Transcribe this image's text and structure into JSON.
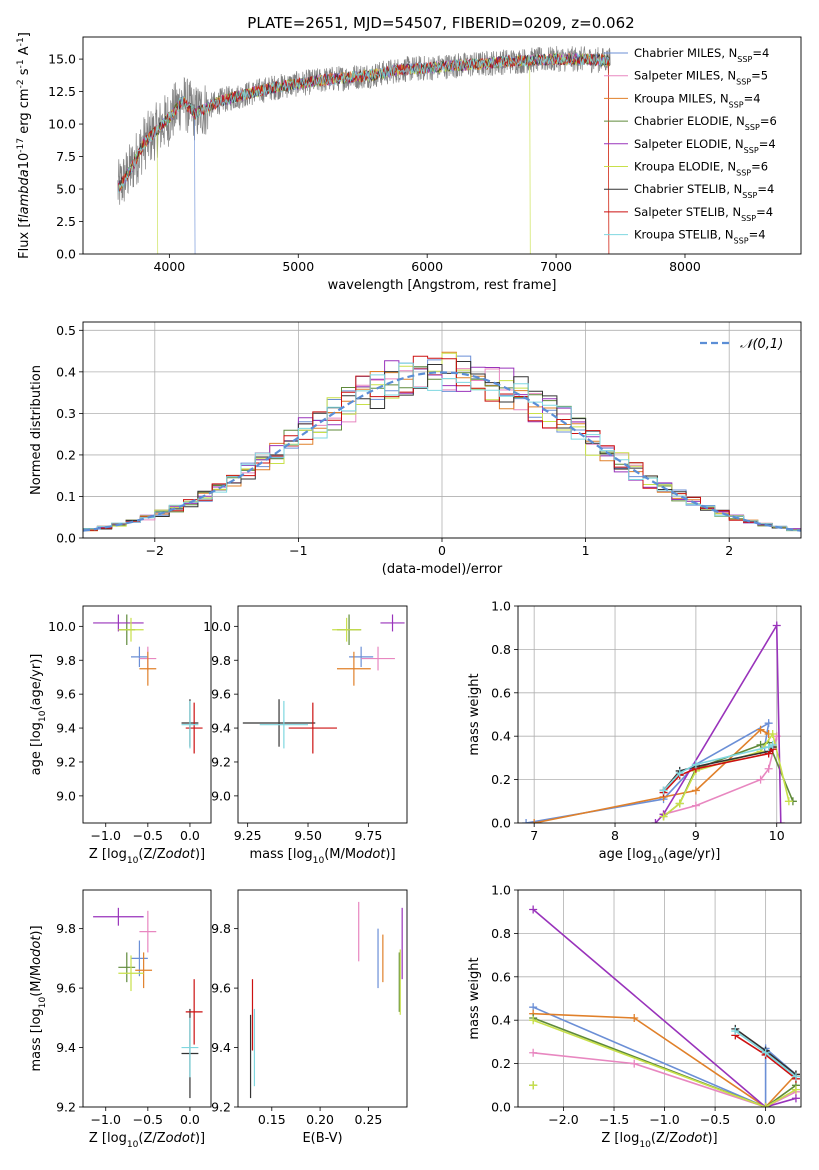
{
  "figure": {
    "title": "PLATE=2651, MJD=54507, FIBERID=0209, z=0.062"
  },
  "models": [
    {
      "name": "Chabrier MILES, N$_{SSP}$=4",
      "base": "Chabrier MILES, N",
      "nssp": "4",
      "color": "#6b8fd6"
    },
    {
      "name": "Salpeter MILES, N$_{SSP}$=5",
      "base": "Salpeter MILES, N",
      "nssp": "5",
      "color": "#e887c0"
    },
    {
      "name": "Kroupa MILES, N$_{SSP}$=4",
      "base": "Kroupa MILES, N",
      "nssp": "4",
      "color": "#e0802a"
    },
    {
      "name": "Chabrier ELODIE, N$_{SSP}$=6",
      "base": "Chabrier ELODIE, N",
      "nssp": "6",
      "color": "#5f8a3a"
    },
    {
      "name": "Salpeter ELODIE, N$_{SSP}$=4",
      "base": "Salpeter ELODIE, N",
      "nssp": "4",
      "color": "#9933bb"
    },
    {
      "name": "Kroupa ELODIE, N$_{SSP}$=6",
      "base": "Kroupa ELODIE, N",
      "nssp": "6",
      "color": "#c8e04a"
    },
    {
      "name": "Chabrier STELIB, N$_{SSP}$=4",
      "base": "Chabrier STELIB, N",
      "nssp": "4",
      "color": "#333333"
    },
    {
      "name": "Salpeter STELIB, N$_{SSP}$=4",
      "base": "Salpeter STELIB, N",
      "nssp": "4",
      "color": "#cc1111"
    },
    {
      "name": "Kroupa STELIB, N$_{SSP}$=4",
      "base": "Kroupa STELIB, N",
      "nssp": "4",
      "color": "#7fd7e0"
    }
  ],
  "chart_data": [
    {
      "type": "line",
      "id": "spectrum",
      "xlabel": "wavelength [Angstrom, rest frame]",
      "ylabel": "Flux [f$_\\lambda$10$^{-17}$ erg cm$^{-2}$ s$^{-1}$ A$^{-1}$]",
      "xlim": [
        3330,
        8900
      ],
      "ylim": [
        0,
        16.7
      ],
      "xticks": [
        4000,
        5000,
        6000,
        7000,
        8000
      ],
      "yticks": [
        0.0,
        2.5,
        5.0,
        7.5,
        10.0,
        12.5,
        15.0
      ],
      "data_color": "#808080",
      "data_envelope": {
        "x": [
          3600,
          3700,
          3800,
          3900,
          4000,
          4100,
          4200,
          4400,
          4600,
          4800,
          5000,
          5200,
          5400,
          5600,
          5800,
          6000,
          6200,
          6400,
          6600,
          6800,
          7000,
          7200,
          7400,
          7420
        ],
        "y": [
          5.0,
          6.5,
          8.5,
          9.5,
          10.5,
          11.8,
          10.8,
          11.8,
          12.3,
          12.8,
          13.1,
          13.4,
          13.6,
          13.8,
          14.2,
          14.3,
          14.5,
          14.6,
          14.8,
          14.9,
          15.0,
          15.0,
          14.9,
          14.9
        ]
      },
      "legend_loc": "upper right",
      "grid": false
    },
    {
      "type": "step",
      "id": "residuals",
      "xlabel": "(data-model)/error",
      "ylabel": "Normed distribution",
      "xlim": [
        -2.5,
        2.5
      ],
      "ylim": [
        0,
        0.52
      ],
      "xticks": [
        -2,
        -1,
        0,
        1,
        2
      ],
      "yticks": [
        0.0,
        0.1,
        0.2,
        0.3,
        0.4,
        0.5
      ],
      "gaussian_label": "$\\mathcal{N}(0,1)$",
      "gaussian_color": "#5b8ed6",
      "bin_width": 0.1,
      "grid": true
    },
    {
      "type": "errorbar",
      "id": "age-vs-Z",
      "xlabel": "Z [log$_{10}$(Z/Z$_\\odot$)]",
      "ylabel": "age  [log$_{10}$(age/yr)]",
      "xlim": [
        -1.27,
        0.25
      ],
      "ylim": [
        8.84,
        10.12
      ],
      "xticks": [
        -1.0,
        -0.5,
        0.0
      ],
      "yticks": [
        9.0,
        9.2,
        9.4,
        9.6,
        9.8,
        10.0
      ],
      "points": [
        {
          "model": 0,
          "x": -0.6,
          "xerr": 0.1,
          "y": 9.82,
          "yerr": 0.06
        },
        {
          "model": 1,
          "x": -0.5,
          "xerr": 0.1,
          "y": 9.81,
          "yerr": 0.07
        },
        {
          "model": 2,
          "x": -0.5,
          "xerr": 0.1,
          "y": 9.75,
          "yerr": 0.1
        },
        {
          "model": 3,
          "x": -0.75,
          "xerr": 0.1,
          "y": 9.98,
          "yerr": 0.09
        },
        {
          "model": 4,
          "x": -0.85,
          "xerr": 0.3,
          "y": 10.02,
          "yerr": 0.05
        },
        {
          "model": 5,
          "x": -0.7,
          "xerr": 0.15,
          "y": 9.98,
          "yerr": 0.07
        },
        {
          "model": 6,
          "x": 0.0,
          "xerr": 0.1,
          "y": 9.43,
          "yerr": 0.14
        },
        {
          "model": 7,
          "x": 0.05,
          "xerr": 0.1,
          "y": 9.4,
          "yerr": 0.15
        },
        {
          "model": 8,
          "x": 0.0,
          "xerr": 0.1,
          "y": 9.42,
          "yerr": 0.14
        }
      ]
    },
    {
      "type": "errorbar",
      "id": "age-vs-mass",
      "xlabel": "mass [log$_{10}$(M/M$_\\odot$)]",
      "ylabel": "",
      "xlim": [
        9.21,
        9.91
      ],
      "ylim": [
        8.84,
        10.12
      ],
      "xticks": [
        9.25,
        9.5,
        9.75
      ],
      "yticks": [
        9.0,
        9.2,
        9.4,
        9.6,
        9.8,
        10.0
      ],
      "points": [
        {
          "model": 0,
          "x": 9.72,
          "xerr": 0.05,
          "y": 9.82,
          "yerr": 0.06
        },
        {
          "model": 1,
          "x": 9.79,
          "xerr": 0.07,
          "y": 9.81,
          "yerr": 0.07
        },
        {
          "model": 2,
          "x": 9.69,
          "xerr": 0.07,
          "y": 9.75,
          "yerr": 0.1
        },
        {
          "model": 3,
          "x": 9.67,
          "xerr": 0.05,
          "y": 9.98,
          "yerr": 0.09
        },
        {
          "model": 4,
          "x": 9.85,
          "xerr": 0.05,
          "y": 10.02,
          "yerr": 0.05
        },
        {
          "model": 5,
          "x": 9.66,
          "xerr": 0.06,
          "y": 9.98,
          "yerr": 0.07
        },
        {
          "model": 6,
          "x": 9.38,
          "xerr": 0.15,
          "y": 9.43,
          "yerr": 0.14
        },
        {
          "model": 7,
          "x": 9.52,
          "xerr": 0.1,
          "y": 9.4,
          "yerr": 0.15
        },
        {
          "model": 8,
          "x": 9.4,
          "xerr": 0.1,
          "y": 9.42,
          "yerr": 0.14
        }
      ]
    },
    {
      "type": "line",
      "id": "massweight-vs-age",
      "xlabel": "age  [log$_{10}$(age/yr)]",
      "ylabel": "mass weight",
      "xlim": [
        6.8,
        10.3
      ],
      "ylim": [
        0,
        1.0
      ],
      "xticks": [
        7,
        8,
        9,
        10
      ],
      "yticks": [
        0.0,
        0.2,
        0.4,
        0.6,
        0.8,
        1.0
      ],
      "grid": true,
      "series": [
        {
          "model": 0,
          "x": [
            6.9,
            8.6,
            9.0,
            9.9,
            9.85
          ],
          "y": [
            0.0,
            0.11,
            0.27,
            0.46,
            0.35
          ]
        },
        {
          "model": 1,
          "x": [
            8.6,
            9.0,
            9.8,
            9.9,
            10.0
          ],
          "y": [
            0.04,
            0.08,
            0.2,
            0.25,
            0.4
          ]
        },
        {
          "model": 2,
          "x": [
            7.0,
            8.6,
            9.0,
            9.8,
            9.9
          ],
          "y": [
            0.0,
            0.12,
            0.15,
            0.43,
            0.41
          ]
        },
        {
          "model": 3,
          "x": [
            8.6,
            8.8,
            9.0,
            9.8,
            9.9,
            10.2
          ],
          "y": [
            0.03,
            0.09,
            0.25,
            0.36,
            0.37,
            0.1
          ]
        },
        {
          "model": 4,
          "x": [
            8.5,
            8.6,
            10.0,
            10.05
          ],
          "y": [
            0.0,
            0.04,
            0.91,
            0.0
          ]
        },
        {
          "model": 5,
          "x": [
            8.6,
            8.8,
            9.0,
            9.8,
            9.95,
            10.15
          ],
          "y": [
            0.03,
            0.09,
            0.24,
            0.33,
            0.41,
            0.1
          ]
        },
        {
          "model": 6,
          "x": [
            8.6,
            8.8,
            9.0,
            9.9,
            9.95
          ],
          "y": [
            0.15,
            0.24,
            0.26,
            0.33,
            0.35
          ]
        },
        {
          "model": 7,
          "x": [
            8.6,
            8.8,
            9.0,
            9.9,
            9.95
          ],
          "y": [
            0.14,
            0.22,
            0.25,
            0.32,
            0.34
          ]
        },
        {
          "model": 8,
          "x": [
            8.6,
            8.8,
            9.0,
            9.9,
            9.95
          ],
          "y": [
            0.15,
            0.23,
            0.27,
            0.35,
            0.36
          ]
        }
      ]
    },
    {
      "type": "errorbar",
      "id": "mass-vs-Z",
      "xlabel": "Z [log$_{10}$(Z/Z$_\\odot$)]",
      "ylabel": "mass [log$_{10}$(M/M$_\\odot$)]",
      "xlim": [
        -1.27,
        0.25
      ],
      "ylim": [
        9.2,
        9.93
      ],
      "xticks": [
        -1.0,
        -0.5,
        0.0
      ],
      "yticks": [
        9.2,
        9.4,
        9.6,
        9.8
      ],
      "points": [
        {
          "model": 0,
          "x": -0.6,
          "xerr": 0.1,
          "y": 9.7,
          "yerr": 0.06
        },
        {
          "model": 1,
          "x": -0.5,
          "xerr": 0.1,
          "y": 9.79,
          "yerr": 0.07
        },
        {
          "model": 2,
          "x": -0.55,
          "xerr": 0.1,
          "y": 9.66,
          "yerr": 0.06
        },
        {
          "model": 3,
          "x": -0.75,
          "xerr": 0.1,
          "y": 9.67,
          "yerr": 0.05
        },
        {
          "model": 4,
          "x": -0.85,
          "xerr": 0.3,
          "y": 9.84,
          "yerr": 0.03
        },
        {
          "model": 5,
          "x": -0.7,
          "xerr": 0.15,
          "y": 9.65,
          "yerr": 0.06
        },
        {
          "model": 6,
          "x": 0.0,
          "xerr": 0.1,
          "y": 9.38,
          "yerr": 0.15
        },
        {
          "model": 7,
          "x": 0.05,
          "xerr": 0.1,
          "y": 9.52,
          "yerr": 0.11
        },
        {
          "model": 8,
          "x": 0.0,
          "xerr": 0.1,
          "y": 9.4,
          "yerr": 0.1
        }
      ]
    },
    {
      "type": "errorbar",
      "id": "mass-vs-EBV",
      "xlabel": "E(B-V)",
      "ylabel": "",
      "xlim": [
        0.115,
        0.29
      ],
      "ylim": [
        9.2,
        9.93
      ],
      "xticks": [
        0.15,
        0.2,
        0.25
      ],
      "yticks": [
        9.2,
        9.4,
        9.6,
        9.8
      ],
      "points": [
        {
          "model": 0,
          "x": 0.26,
          "xerr": 0.0,
          "y": 9.7,
          "yerr": 0.1
        },
        {
          "model": 1,
          "x": 0.24,
          "xerr": 0.0,
          "y": 9.79,
          "yerr": 0.1
        },
        {
          "model": 2,
          "x": 0.265,
          "xerr": 0.0,
          "y": 9.7,
          "yerr": 0.08
        },
        {
          "model": 3,
          "x": 0.282,
          "xerr": 0.0,
          "y": 9.62,
          "yerr": 0.1
        },
        {
          "model": 4,
          "x": 0.285,
          "xerr": 0.0,
          "y": 9.75,
          "yerr": 0.12
        },
        {
          "model": 5,
          "x": 0.283,
          "xerr": 0.0,
          "y": 9.62,
          "yerr": 0.11
        },
        {
          "model": 6,
          "x": 0.128,
          "xerr": 0.0,
          "y": 9.37,
          "yerr": 0.14
        },
        {
          "model": 7,
          "x": 0.13,
          "xerr": 0.0,
          "y": 9.51,
          "yerr": 0.12
        },
        {
          "model": 8,
          "x": 0.132,
          "xerr": 0.0,
          "y": 9.4,
          "yerr": 0.13
        }
      ]
    },
    {
      "type": "line",
      "id": "massweight-vs-Z",
      "xlabel": "Z [log$_{10}$(Z/Z$_\\odot$)]",
      "ylabel": "mass weight",
      "xlim": [
        -2.45,
        0.35
      ],
      "ylim": [
        0,
        1.0
      ],
      "xticks": [
        -2.0,
        -1.5,
        -1.0,
        -0.5,
        0.0
      ],
      "yticks": [
        0.0,
        0.2,
        0.4,
        0.6,
        0.8,
        1.0
      ],
      "grid": true,
      "series": [
        {
          "model": 0,
          "x": [
            -2.3,
            0.0,
            0.0,
            0.3
          ],
          "y": [
            0.46,
            0.0,
            0.27,
            0.15
          ]
        },
        {
          "model": 1,
          "x": [
            -2.3,
            -1.3,
            0.0,
            0.3
          ],
          "y": [
            0.25,
            0.2,
            0.0,
            0.07
          ]
        },
        {
          "model": 2,
          "x": [
            -2.3,
            -1.3,
            0.0,
            0.3
          ],
          "y": [
            0.43,
            0.41,
            0.0,
            0.15
          ]
        },
        {
          "model": 3,
          "x": [
            -2.3,
            0.0,
            0.3
          ],
          "y": [
            0.41,
            0.0,
            0.1
          ]
        },
        {
          "model": 4,
          "x": [
            -2.3,
            0.0,
            0.3
          ],
          "y": [
            0.91,
            0.0,
            0.04
          ]
        },
        {
          "model": 5,
          "x": [
            -2.3,
            0.0,
            0.3
          ],
          "y": [
            0.4,
            0.0,
            0.08
          ]
        },
        {
          "model": 6,
          "x": [
            -0.3,
            0.0,
            0.3
          ],
          "y": [
            0.36,
            0.26,
            0.15
          ]
        },
        {
          "model": 7,
          "x": [
            -0.3,
            0.0,
            0.3
          ],
          "y": [
            0.33,
            0.24,
            0.13
          ]
        },
        {
          "model": 8,
          "x": [
            -0.3,
            0.0,
            0.3
          ],
          "y": [
            0.35,
            0.25,
            0.14
          ]
        }
      ],
      "extra_points": [
        {
          "model": 3,
          "x": -2.3,
          "y": 0.1
        },
        {
          "model": 5,
          "x": -2.3,
          "y": 0.1
        }
      ]
    }
  ]
}
